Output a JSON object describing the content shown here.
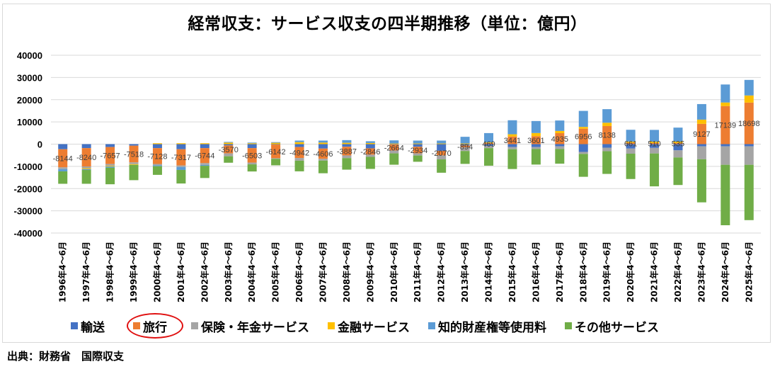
{
  "chart_data": {
    "type": "bar",
    "stacked": true,
    "title": "経常収支：サービス収支の四半期推移（単位：億円）",
    "xlabel": "",
    "ylabel": "",
    "ylim": [
      -40000,
      40000
    ],
    "yticks": [
      40000,
      30000,
      20000,
      10000,
      0,
      -10000,
      -20000,
      -30000,
      -40000
    ],
    "grid": true,
    "legend_position": "bottom",
    "categories": [
      "1996年4～6月",
      "1997年4～6月",
      "1998年4～6月",
      "1999年4～6月",
      "2000年4～6月",
      "2001年4～6月",
      "2002年4～6月",
      "2003年4～6月",
      "2004年4～6月",
      "2005年4～6月",
      "2006年4～6月",
      "2007年4～6月",
      "2008年4～6月",
      "2009年4～6月",
      "2010年4～6月",
      "2011年4～6月",
      "2012年4～6月",
      "2013年4～6月",
      "2014年4～6月",
      "2015年4～6月",
      "2016年4～6月",
      "2017年4～6月",
      "2018年4～6月",
      "2019年4～6月",
      "2020年4～6月",
      "2021年4～6月",
      "2022年4～6月",
      "2023年4～6月",
      "2024年4～6月",
      "2025年4～6月"
    ],
    "series": [
      {
        "name": "輸送",
        "color": "#4472c4",
        "values": [
          -2300,
          -1800,
          -1300,
          -700,
          -1800,
          -2300,
          -1800,
          -600,
          -1800,
          -200,
          -1300,
          -2000,
          -1200,
          -1900,
          -200,
          -1200,
          -3000,
          -600,
          -800,
          -1300,
          -1300,
          -1000,
          -3500,
          -1600,
          -2000,
          -1700,
          -2800,
          -1000,
          -1000,
          -1000
        ]
      },
      {
        "name": "旅行",
        "color": "#ed7d31",
        "values": [
          -8144,
          -8240,
          -7657,
          -7518,
          -7128,
          -7317,
          -6744,
          -3570,
          -6503,
          -6142,
          -4942,
          -4606,
          -3887,
          -2846,
          -2664,
          -2934,
          -2070,
          -894,
          469,
          3441,
          3601,
          4935,
          6956,
          8138,
          661,
          510,
          535,
          9127,
          17139,
          18698
        ]
      },
      {
        "name": "保険・年金サービス",
        "color": "#a5a5a5",
        "values": [
          -800,
          -800,
          -800,
          -800,
          -600,
          -700,
          -800,
          -1300,
          -800,
          -300,
          -1200,
          -800,
          -1200,
          -1000,
          -1300,
          -1000,
          -1800,
          -1600,
          -1000,
          -1000,
          -900,
          -1200,
          -900,
          -1600,
          -2300,
          -2500,
          -3200,
          -5800,
          -8300,
          -8300
        ]
      },
      {
        "name": "金融サービス",
        "color": "#ffc000",
        "values": [
          0,
          -400,
          -300,
          -300,
          400,
          400,
          400,
          700,
          400,
          600,
          900,
          700,
          600,
          500,
          300,
          300,
          300,
          300,
          300,
          1000,
          1400,
          1000,
          800,
          1500,
          500,
          600,
          600,
          1900,
          1600,
          3200
        ]
      },
      {
        "name": "知的財産権等使用料",
        "color": "#5b9bd5",
        "values": [
          -1000,
          -400,
          -500,
          0,
          -400,
          -1300,
          -400,
          300,
          300,
          300,
          700,
          900,
          1200,
          800,
          1400,
          1300,
          1300,
          3000,
          4200,
          6300,
          5400,
          4700,
          7200,
          6100,
          5300,
          5300,
          6300,
          7000,
          8100,
          7000
        ]
      },
      {
        "name": "その他サービス",
        "color": "#70ad47",
        "values": [
          -5600,
          -6200,
          -7500,
          -6900,
          -3900,
          -6100,
          -5500,
          -2900,
          -3200,
          -2900,
          -4800,
          -5700,
          -5200,
          -5400,
          -5100,
          -2800,
          -6000,
          -5800,
          -7900,
          -8900,
          -7000,
          -6600,
          -10300,
          -10200,
          -11400,
          -14800,
          -12400,
          -19400,
          -27200,
          -24900
        ]
      }
    ],
    "data_labels": {
      "series": "旅行",
      "values": [
        -8144,
        -8240,
        -7657,
        -7518,
        -7128,
        -7317,
        -6744,
        -3570,
        -6503,
        -6142,
        -4942,
        -4606,
        -3887,
        -2846,
        -2664,
        -2934,
        -2070,
        -894,
        469,
        3441,
        3601,
        4935,
        6956,
        8138,
        661,
        510,
        535,
        9127,
        17139,
        18698
      ]
    },
    "highlighted_legend_entry": "旅行"
  },
  "legend": [
    {
      "label": "輸送",
      "color": "#4472c4"
    },
    {
      "label": "旅行",
      "color": "#ed7d31",
      "highlighted": true
    },
    {
      "label": "保険・年金サービス",
      "color": "#a5a5a5"
    },
    {
      "label": "金融サービス",
      "color": "#ffc000"
    },
    {
      "label": "知的財産権等使用料",
      "color": "#5b9bd5"
    },
    {
      "label": "その他サービス",
      "color": "#70ad47"
    }
  ],
  "source": "出典：財務省　国際収支"
}
